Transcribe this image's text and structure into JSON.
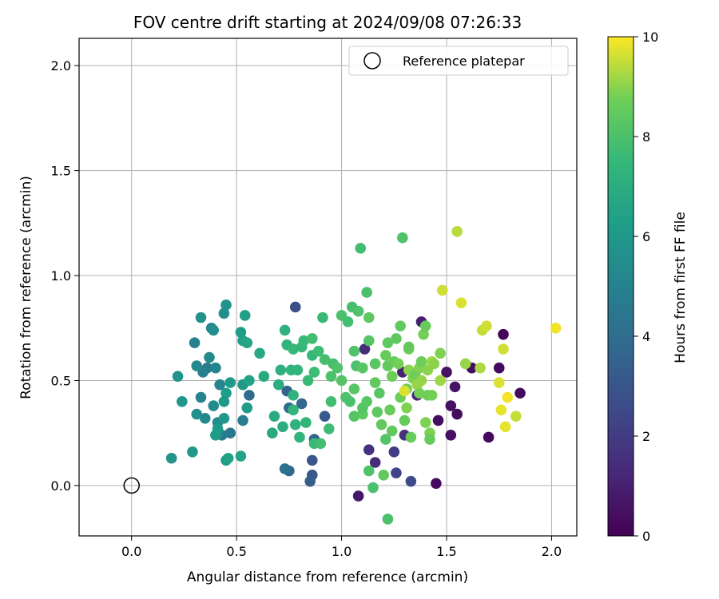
{
  "chart_data": {
    "type": "scatter",
    "title": "FOV centre drift starting at 2024/09/08 07:26:33",
    "xlabel": "Angular distance from reference (arcmin)",
    "ylabel": "Rotation from reference (arcmin)",
    "xlim": [
      -0.25,
      2.12
    ],
    "ylim": [
      -0.24,
      2.13
    ],
    "xticks": [
      0.0,
      0.5,
      1.0,
      1.5,
      2.0
    ],
    "xtick_labels": [
      "0.0",
      "0.5",
      "1.0",
      "1.5",
      "2.0"
    ],
    "yticks": [
      0.0,
      0.5,
      1.0,
      1.5,
      2.0
    ],
    "ytick_labels": [
      "0.0",
      "0.5",
      "1.0",
      "1.5",
      "2.0"
    ],
    "grid": true,
    "legend": {
      "placement": "top-right",
      "entries": [
        "Reference platepar"
      ]
    },
    "reference_point": {
      "x": 0.0,
      "y": 0.0,
      "marker": "open-circle"
    },
    "colorbar": {
      "label": "Hours from first FF file",
      "min": 0,
      "max": 10,
      "ticks": [
        0,
        2,
        4,
        6,
        8,
        10
      ],
      "tick_labels": [
        "0",
        "2",
        "4",
        "6",
        "8",
        "10"
      ],
      "colormap": "viridis"
    },
    "points": [
      [
        1.77,
        0.72,
        0.2
      ],
      [
        1.85,
        0.44,
        0.3
      ],
      [
        1.75,
        0.56,
        0.3
      ],
      [
        1.62,
        0.56,
        0.4
      ],
      [
        1.7,
        0.23,
        0.3
      ],
      [
        1.5,
        0.54,
        0.5
      ],
      [
        1.52,
        0.38,
        0.5
      ],
      [
        1.54,
        0.47,
        0.6
      ],
      [
        1.52,
        0.24,
        0.5
      ],
      [
        1.55,
        0.34,
        0.4
      ],
      [
        1.46,
        0.31,
        0.4
      ],
      [
        1.45,
        0.01,
        0.3
      ],
      [
        1.08,
        -0.05,
        0.7
      ],
      [
        1.11,
        0.65,
        1.4
      ],
      [
        1.38,
        0.78,
        1.0
      ],
      [
        1.36,
        0.43,
        1.2
      ],
      [
        1.29,
        0.54,
        1.1
      ],
      [
        1.3,
        0.24,
        1.5
      ],
      [
        1.13,
        0.17,
        1.6
      ],
      [
        1.16,
        0.11,
        1.4
      ],
      [
        1.25,
        0.16,
        2.1
      ],
      [
        1.26,
        0.06,
        2.3
      ],
      [
        1.33,
        0.02,
        2.6
      ],
      [
        0.78,
        0.85,
        2.7
      ],
      [
        0.86,
        0.12,
        3.0
      ],
      [
        0.86,
        0.05,
        3.1
      ],
      [
        0.85,
        0.02,
        3.3
      ],
      [
        0.87,
        0.22,
        3.5
      ],
      [
        0.92,
        0.33,
        3.2
      ],
      [
        0.81,
        0.39,
        3.8
      ],
      [
        0.74,
        0.45,
        3.6
      ],
      [
        0.75,
        0.37,
        4.0
      ],
      [
        0.75,
        0.07,
        3.8
      ],
      [
        0.73,
        0.08,
        4.2
      ],
      [
        0.56,
        0.43,
        3.9
      ],
      [
        0.47,
        0.25,
        4.5
      ],
      [
        0.53,
        0.31,
        4.8
      ],
      [
        0.43,
        0.24,
        4.7
      ],
      [
        0.36,
        0.56,
        4.6
      ],
      [
        0.34,
        0.54,
        4.9
      ],
      [
        0.3,
        0.68,
        5.0
      ],
      [
        0.31,
        0.57,
        5.3
      ],
      [
        0.33,
        0.42,
        5.0
      ],
      [
        0.4,
        0.56,
        5.1
      ],
      [
        0.42,
        0.48,
        5.2
      ],
      [
        0.39,
        0.38,
        5.4
      ],
      [
        0.41,
        0.3,
        5.5
      ],
      [
        0.35,
        0.32,
        5.3
      ],
      [
        0.31,
        0.34,
        5.6
      ],
      [
        0.37,
        0.61,
        5.4
      ],
      [
        0.38,
        0.75,
        5.3
      ],
      [
        0.39,
        0.74,
        5.6
      ],
      [
        0.33,
        0.8,
        5.7
      ],
      [
        0.44,
        0.82,
        5.5
      ],
      [
        0.45,
        0.86,
        5.8
      ],
      [
        0.24,
        0.4,
        5.9
      ],
      [
        0.22,
        0.52,
        5.7
      ],
      [
        0.19,
        0.13,
        5.8
      ],
      [
        0.29,
        0.16,
        6.0
      ],
      [
        0.45,
        0.12,
        6.2
      ],
      [
        0.46,
        0.13,
        6.4
      ],
      [
        0.52,
        0.14,
        6.5
      ],
      [
        0.53,
        0.48,
        6.0
      ],
      [
        0.55,
        0.37,
        6.2
      ],
      [
        0.47,
        0.49,
        6.1
      ],
      [
        0.45,
        0.44,
        6.3
      ],
      [
        0.44,
        0.32,
        6.0
      ],
      [
        0.41,
        0.27,
        6.1
      ],
      [
        0.44,
        0.4,
        6.0
      ],
      [
        0.4,
        0.24,
        6.2
      ],
      [
        0.52,
        0.73,
        6.2
      ],
      [
        0.53,
        0.69,
        6.4
      ],
      [
        0.55,
        0.68,
        6.6
      ],
      [
        0.54,
        0.81,
        6.3
      ],
      [
        0.56,
        0.5,
        6.5
      ],
      [
        0.61,
        0.63,
        6.7
      ],
      [
        0.63,
        0.52,
        6.8
      ],
      [
        0.67,
        0.25,
        6.8
      ],
      [
        0.68,
        0.33,
        6.9
      ],
      [
        0.7,
        0.48,
        7.0
      ],
      [
        0.71,
        0.55,
        7.1
      ],
      [
        0.72,
        0.28,
        7.0
      ],
      [
        0.73,
        0.74,
        7.2
      ],
      [
        0.74,
        0.67,
        7.3
      ],
      [
        0.76,
        0.55,
        7.3
      ],
      [
        0.77,
        0.43,
        7.2
      ],
      [
        0.77,
        0.36,
        7.4
      ],
      [
        0.78,
        0.29,
        7.2
      ],
      [
        0.77,
        0.65,
        7.5
      ],
      [
        0.79,
        0.55,
        7.4
      ],
      [
        0.8,
        0.23,
        7.3
      ],
      [
        0.81,
        0.66,
        7.5
      ],
      [
        0.82,
        0.69,
        7.6
      ],
      [
        0.83,
        0.3,
        7.4
      ],
      [
        0.84,
        0.5,
        7.6
      ],
      [
        0.86,
        0.7,
        7.8
      ],
      [
        0.86,
        0.62,
        7.5
      ],
      [
        0.87,
        0.54,
        7.7
      ],
      [
        0.87,
        0.2,
        7.6
      ],
      [
        0.89,
        0.64,
        7.7
      ],
      [
        0.9,
        0.2,
        7.8
      ],
      [
        0.91,
        0.8,
        7.6
      ],
      [
        0.92,
        0.6,
        7.9
      ],
      [
        0.94,
        0.27,
        7.7
      ],
      [
        0.95,
        0.4,
        7.8
      ],
      [
        0.95,
        0.52,
        8.0
      ],
      [
        0.96,
        0.58,
        7.9
      ],
      [
        0.98,
        0.56,
        8.1
      ],
      [
        1.0,
        0.81,
        8.0
      ],
      [
        1.0,
        0.5,
        8.2
      ],
      [
        1.02,
        0.42,
        8.1
      ],
      [
        1.03,
        0.78,
        7.8
      ],
      [
        1.04,
        0.4,
        8.0
      ],
      [
        1.05,
        0.85,
        7.9
      ],
      [
        1.06,
        0.64,
        8.1
      ],
      [
        1.06,
        0.46,
        8.3
      ],
      [
        1.06,
        0.33,
        8.2
      ],
      [
        1.07,
        0.57,
        8.0
      ],
      [
        1.08,
        0.83,
        8.1
      ],
      [
        1.09,
        1.13,
        7.8
      ],
      [
        1.1,
        0.56,
        8.3
      ],
      [
        1.1,
        0.34,
        8.4
      ],
      [
        1.1,
        0.37,
        8.2
      ],
      [
        1.12,
        0.92,
        8.0
      ],
      [
        1.12,
        0.4,
        8.3
      ],
      [
        1.13,
        0.69,
        8.2
      ],
      [
        1.13,
        0.8,
        8.4
      ],
      [
        1.13,
        0.07,
        8.1
      ],
      [
        1.15,
        -0.01,
        8.0
      ],
      [
        1.16,
        0.58,
        8.3
      ],
      [
        1.16,
        0.49,
        8.5
      ],
      [
        1.17,
        0.35,
        8.4
      ],
      [
        1.18,
        0.44,
        8.3
      ],
      [
        1.19,
        0.29,
        8.5
      ],
      [
        1.2,
        0.05,
        8.4
      ],
      [
        1.21,
        0.22,
        8.2
      ],
      [
        1.21,
        0.62,
        8.6
      ],
      [
        1.22,
        0.57,
        8.5
      ],
      [
        1.22,
        0.68,
        8.4
      ],
      [
        1.22,
        -0.16,
        8.0
      ],
      [
        1.23,
        0.36,
        8.6
      ],
      [
        1.24,
        0.52,
        8.7
      ],
      [
        1.24,
        0.26,
        8.5
      ],
      [
        1.25,
        0.59,
        8.6
      ],
      [
        1.26,
        0.7,
        8.4
      ],
      [
        1.27,
        0.58,
        8.8
      ],
      [
        1.28,
        0.42,
        8.7
      ],
      [
        1.28,
        0.76,
        8.5
      ],
      [
        1.29,
        1.18,
        8.1
      ],
      [
        1.3,
        0.31,
        8.6
      ],
      [
        1.31,
        0.37,
        8.9
      ],
      [
        1.31,
        0.46,
        8.7
      ],
      [
        1.32,
        0.65,
        8.8
      ],
      [
        1.32,
        0.66,
        8.5
      ],
      [
        1.32,
        0.55,
        9.0
      ],
      [
        1.33,
        0.23,
        8.6
      ],
      [
        1.34,
        0.51,
        8.9
      ],
      [
        1.35,
        0.53,
        8.7
      ],
      [
        1.36,
        0.48,
        9.1
      ],
      [
        1.37,
        0.56,
        8.9
      ],
      [
        1.37,
        0.44,
        8.8
      ],
      [
        1.38,
        0.59,
        8.7
      ],
      [
        1.38,
        0.5,
        9.1
      ],
      [
        1.39,
        0.72,
        8.8
      ],
      [
        1.4,
        0.3,
        8.9
      ],
      [
        1.4,
        0.76,
        8.6
      ],
      [
        1.41,
        0.43,
        8.7
      ],
      [
        1.41,
        0.55,
        9.0
      ],
      [
        1.42,
        0.25,
        8.9
      ],
      [
        1.42,
        0.22,
        8.6
      ],
      [
        1.43,
        0.43,
        8.8
      ],
      [
        1.43,
        0.59,
        9.2
      ],
      [
        1.44,
        0.58,
        9.0
      ],
      [
        1.47,
        0.5,
        9.2
      ],
      [
        1.47,
        0.63,
        8.9
      ],
      [
        1.48,
        0.93,
        9.6
      ],
      [
        1.55,
        1.21,
        9.4
      ],
      [
        1.57,
        0.87,
        9.7
      ],
      [
        1.59,
        0.58,
        9.1
      ],
      [
        1.66,
        0.56,
        9.3
      ],
      [
        1.67,
        0.74,
        9.5
      ],
      [
        1.69,
        0.76,
        9.6
      ],
      [
        1.75,
        0.49,
        9.7
      ],
      [
        1.76,
        0.36,
        9.8
      ],
      [
        1.77,
        0.65,
        9.6
      ],
      [
        1.78,
        0.28,
        9.8
      ],
      [
        1.79,
        0.42,
        9.9
      ],
      [
        1.83,
        0.33,
        9.5
      ],
      [
        2.02,
        0.75,
        9.9
      ],
      [
        1.3,
        0.45,
        9.7
      ]
    ]
  }
}
